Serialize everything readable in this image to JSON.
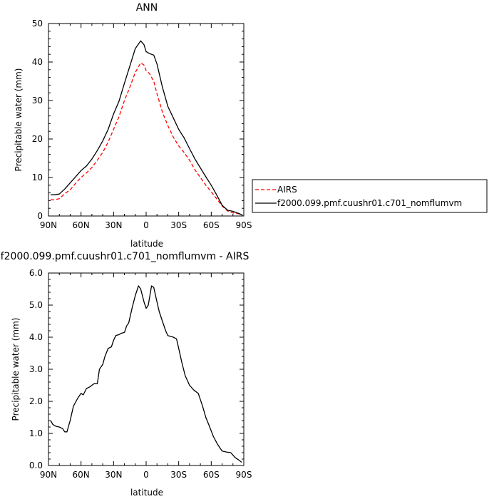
{
  "chart_data": [
    {
      "type": "line",
      "title": "ANN",
      "xlabel": "latitude",
      "ylabel": "Precipitable water  (mm)",
      "xlim": [
        90,
        -90
      ],
      "ylim": [
        0,
        50
      ],
      "x_ticks": [
        90,
        60,
        30,
        0,
        -30,
        -60,
        -90
      ],
      "x_tick_labels": [
        "90N",
        "60N",
        "30N",
        "0",
        "30S",
        "60S",
        "90S"
      ],
      "y_ticks": [
        0,
        10,
        20,
        30,
        40,
        50
      ],
      "y_tick_labels": [
        "0",
        "10",
        "20",
        "30",
        "40",
        "50"
      ],
      "legend_position": "right",
      "series": [
        {
          "name": "AIRS",
          "color": "#ff0000",
          "dash": "dashed",
          "x": [
            88,
            85,
            80,
            75,
            70,
            65,
            60,
            55,
            50,
            45,
            40,
            35,
            30,
            25,
            20,
            15,
            10,
            5,
            2,
            0,
            -3,
            -7,
            -10,
            -15,
            -20,
            -25,
            -30,
            -35,
            -40,
            -45,
            -50,
            -55,
            -60,
            -65,
            -70,
            -75,
            -80,
            -85,
            -89
          ],
          "y": [
            4.2,
            4.2,
            4.5,
            5.8,
            6.8,
            8.5,
            10.0,
            11.2,
            12.6,
            14.5,
            16.5,
            19.2,
            22.5,
            25.8,
            30.0,
            33.5,
            37.3,
            39.8,
            39.2,
            37.8,
            37.0,
            35.0,
            31.8,
            27.0,
            23.5,
            20.5,
            18.2,
            16.5,
            14.5,
            12.0,
            10.0,
            8.0,
            6.3,
            4.5,
            2.6,
            1.3,
            0.8,
            0.6,
            0.2
          ]
        },
        {
          "name": "f2000.099.pmf.cuushr01.c701_nomflumvm",
          "color": "#000000",
          "dash": "solid",
          "x": [
            88,
            85,
            80,
            75,
            70,
            65,
            60,
            55,
            50,
            45,
            40,
            35,
            30,
            25,
            20,
            15,
            10,
            5,
            2,
            0,
            -3,
            -7,
            -10,
            -15,
            -20,
            -25,
            -30,
            -35,
            -40,
            -45,
            -50,
            -55,
            -60,
            -65,
            -70,
            -75,
            -80,
            -85,
            -89
          ],
          "y": [
            5.5,
            5.5,
            5.7,
            7.0,
            8.6,
            10.2,
            11.8,
            13.0,
            14.8,
            17.0,
            19.5,
            22.5,
            26.5,
            29.8,
            34.5,
            39.0,
            43.5,
            45.5,
            44.5,
            42.7,
            42.2,
            41.8,
            39.5,
            33.5,
            28.5,
            25.5,
            22.5,
            20.3,
            17.5,
            14.8,
            12.5,
            10.2,
            8.0,
            5.5,
            2.8,
            1.5,
            1.2,
            0.7,
            0.2
          ]
        }
      ]
    },
    {
      "type": "line",
      "title": "f2000.099.pmf.cuushr01.c701_nomflumvm  -  AIRS",
      "xlabel": "latitude",
      "ylabel": "Precipitable water  (mm)",
      "xlim": [
        90,
        -90
      ],
      "ylim": [
        0,
        6
      ],
      "x_ticks": [
        90,
        60,
        30,
        0,
        -30,
        -60,
        -90
      ],
      "x_tick_labels": [
        "90N",
        "60N",
        "30N",
        "0",
        "30S",
        "60S",
        "90S"
      ],
      "y_ticks": [
        0,
        1,
        2,
        3,
        4,
        5,
        6
      ],
      "y_tick_labels": [
        "0.0",
        "1.0",
        "2.0",
        "3.0",
        "4.0",
        "5.0",
        "6.0"
      ],
      "series": [
        {
          "color": "#000000",
          "dash": "solid",
          "x": [
            88,
            86,
            83,
            80,
            77,
            75,
            73,
            70,
            67,
            63,
            60,
            58,
            55,
            52,
            50,
            48,
            45,
            43,
            40,
            38,
            35,
            32,
            30,
            28,
            25,
            23,
            20,
            18,
            16,
            13,
            10,
            7,
            5,
            2,
            0,
            -2,
            -5,
            -7,
            -10,
            -12,
            -15,
            -18,
            -20,
            -25,
            -28,
            -30,
            -33,
            -36,
            -40,
            -44,
            -48,
            -52,
            -55,
            -58,
            -62,
            -66,
            -70,
            -74,
            -78,
            -82,
            -85,
            -88
          ],
          "y": [
            1.4,
            1.28,
            1.22,
            1.2,
            1.15,
            1.05,
            1.05,
            1.4,
            1.85,
            2.1,
            2.25,
            2.2,
            2.4,
            2.45,
            2.5,
            2.55,
            2.55,
            3.0,
            3.15,
            3.4,
            3.65,
            3.7,
            3.9,
            4.05,
            4.08,
            4.12,
            4.15,
            4.35,
            4.45,
            4.9,
            5.3,
            5.6,
            5.5,
            5.1,
            4.9,
            5.0,
            5.6,
            5.55,
            5.1,
            4.8,
            4.5,
            4.2,
            4.05,
            4.0,
            3.95,
            3.65,
            3.2,
            2.8,
            2.5,
            2.35,
            2.25,
            1.85,
            1.5,
            1.25,
            0.9,
            0.65,
            0.45,
            0.42,
            0.4,
            0.25,
            0.18,
            0.1
          ]
        }
      ]
    }
  ]
}
